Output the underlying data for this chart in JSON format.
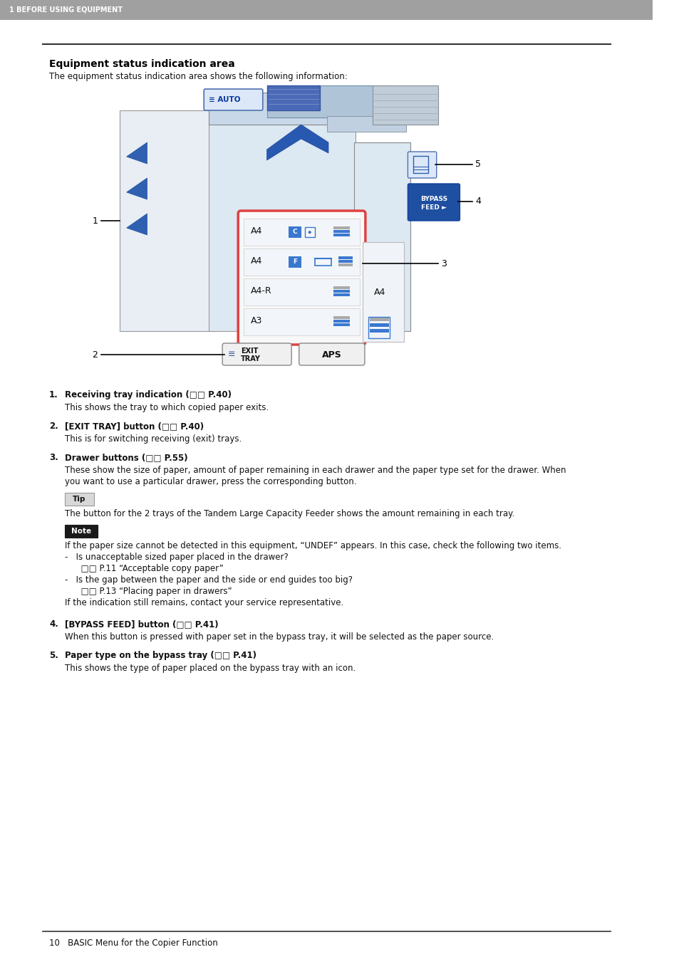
{
  "page_bg": "#ffffff",
  "header_bg": "#a0a0a0",
  "header_text": "1 BEFORE USING EQUIPMENT",
  "header_text_color": "#ffffff",
  "section_title": "Equipment status indication area",
  "section_intro": "The equipment status indication area shows the following information:",
  "items": [
    {
      "num": "1.",
      "bold": "Receiving tray indication (□□ P.40)",
      "desc": "This shows the tray to which copied paper exits."
    },
    {
      "num": "2.",
      "bold": "[EXIT TRAY] button (□□ P.40)",
      "desc": "This is for switching receiving (exit) trays."
    },
    {
      "num": "3.",
      "bold": "Drawer buttons (□□ P.55)",
      "desc": "These show the size of paper, amount of paper remaining in each drawer and the paper type set for the drawer. When\nyou want to use a particular drawer, press the corresponding button."
    },
    {
      "num": "4.",
      "bold": "[BYPASS FEED] button (□□ P.41)",
      "desc": "When this button is pressed with paper set in the bypass tray, it will be selected as the paper source."
    },
    {
      "num": "5.",
      "bold": "Paper type on the bypass tray (□□ P.41)",
      "desc": "This shows the type of paper placed on the bypass tray with an icon."
    }
  ],
  "tip_label": "Tip",
  "tip_text": "The button for the 2 trays of the Tandem Large Capacity Feeder shows the amount remaining in each tray.",
  "note_label": "Note",
  "note_lines": [
    "If the paper size cannot be detected in this equipment, “UNDEF” appears. In this case, check the following two items.",
    "-   Is unacceptable sized paper placed in the drawer?",
    "      □□ P.11 “Acceptable copy paper”",
    "-   Is the gap between the paper and the side or end guides too big?",
    "      □□ P.13 “Placing paper in drawers”",
    "If the indication still remains, contact your service representative."
  ],
  "footer_line_text": "10   BASIC Menu for the Copier Function",
  "tip_bg": "#d8d8d8",
  "tip_border": "#999999",
  "note_bg": "#1a1a1a",
  "note_label_color": "#ffffff"
}
